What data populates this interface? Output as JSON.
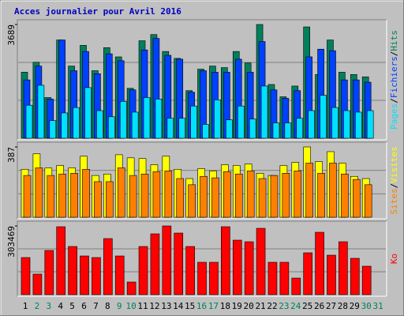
{
  "title": "Acces journalier pour Avril 2016",
  "legend_separator": "/",
  "chart_data": [
    {
      "type": "bar",
      "ylim": [
        0,
        3689
      ],
      "yticks": [
        3689
      ],
      "series": [
        {
          "name": "Hits",
          "color": "#00805c",
          "values": [
            2143,
            2465,
            1320,
            3187,
            2341,
            3013,
            2191,
            2938,
            2639,
            1619,
            3162,
            3362,
            2814,
            2590,
            1544,
            2241,
            2341,
            2291,
            2814,
            2440,
            3689,
            1743,
            1345,
            1693,
            3611,
            2067,
            3187,
            2141,
            2067,
            1992,
            null
          ]
        },
        {
          "name": "Fichiers",
          "color": "#0040ff",
          "values": [
            1892,
            2341,
            1270,
            3187,
            2191,
            2814,
            2092,
            2739,
            2515,
            1569,
            2864,
            3237,
            2689,
            2565,
            1494,
            2191,
            2141,
            2141,
            2565,
            2141,
            3137,
            1569,
            1295,
            1544,
            2640,
            2889,
            2839,
            1892,
            1892,
            1818,
            null
          ]
        },
        {
          "name": "Pages",
          "color": "#00e0ff",
          "values": [
            1071,
            1718,
            573,
            822,
            996,
            1643,
            896,
            697,
            1195,
            847,
            1320,
            1270,
            647,
            647,
            1046,
            448,
            1245,
            598,
            1046,
            623,
            1693,
            498,
            498,
            647,
            896,
            1394,
            996,
            896,
            847,
            896,
            null
          ]
        }
      ]
    },
    {
      "type": "bar",
      "ylim": [
        0,
        387
      ],
      "yticks": [
        387
      ],
      "series": [
        {
          "name": "Visites",
          "color": "#ffff00",
          "values": [
            264,
            349,
            272,
            285,
            272,
            336,
            230,
            238,
            344,
            327,
            323,
            289,
            336,
            264,
            213,
            268,
            255,
            289,
            285,
            293,
            242,
            230,
            285,
            302,
            387,
            306,
            361,
            298,
            225,
            213,
            null
          ]
        },
        {
          "name": "Sites",
          "color": "#ff8000",
          "values": [
            230,
            272,
            230,
            238,
            242,
            264,
            196,
            196,
            272,
            230,
            238,
            251,
            255,
            213,
            179,
            225,
            217,
            251,
            238,
            255,
            213,
            230,
            242,
            255,
            298,
            242,
            298,
            238,
            208,
            179,
            null
          ]
        }
      ]
    },
    {
      "type": "bar",
      "ylim": [
        0,
        303469
      ],
      "yticks": [
        303469
      ],
      "categories": [
        "1",
        "2",
        "3",
        "4",
        "5",
        "6",
        "7",
        "8",
        "9",
        "10",
        "11",
        "12",
        "13",
        "14",
        "15",
        "16",
        "17",
        "18",
        "19",
        "20",
        "21",
        "22",
        "23",
        "24",
        "25",
        "26",
        "27",
        "28",
        "29",
        "30",
        "31"
      ],
      "category_colors": [
        "#000000",
        "#00805c",
        "#00805c",
        "#000000",
        "#000000",
        "#000000",
        "#000000",
        "#000000",
        "#00805c",
        "#00805c",
        "#000000",
        "#000000",
        "#000000",
        "#000000",
        "#000000",
        "#00805c",
        "#00805c",
        "#000000",
        "#000000",
        "#000000",
        "#000000",
        "#000000",
        "#00805c",
        "#00805c",
        "#000000",
        "#000000",
        "#000000",
        "#000000",
        "#000000",
        "#00805c",
        "#00805c"
      ],
      "series": [
        {
          "name": "Ko",
          "color": "#ff0000",
          "values": [
            163936,
            90688,
            195328,
            300000,
            212768,
            170912,
            163936,
            247648,
            170912,
            55808,
            212768,
            268576,
            303469,
            272064,
            212768,
            143008,
            143008,
            300000,
            240672,
            233696,
            292992,
            143008,
            143008,
            73248,
            184864,
            275552,
            174400,
            233696,
            160448,
            125568,
            null
          ]
        }
      ]
    }
  ]
}
